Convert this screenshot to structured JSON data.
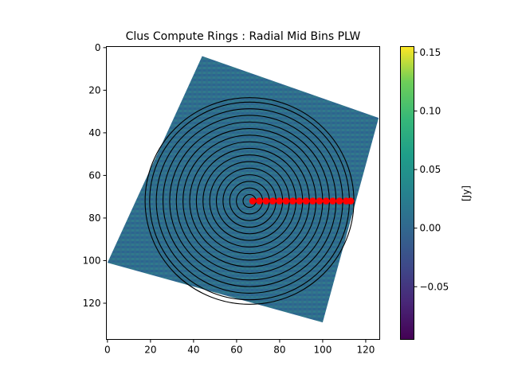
{
  "chart_data": {
    "type": "heatmap",
    "title": "Clus Compute Rings : Radial Mid Bins PLW",
    "xlim": [
      -0.5,
      126.5
    ],
    "ylim": [
      137,
      -0.5
    ],
    "x_ticks": [
      0,
      20,
      40,
      60,
      80,
      100,
      120
    ],
    "y_ticks": [
      0,
      20,
      40,
      60,
      80,
      100,
      120
    ],
    "image": {
      "shape": "rotated-square",
      "corners": [
        [
          44,
          4
        ],
        [
          126,
          33
        ],
        [
          100,
          129
        ],
        [
          0,
          101
        ]
      ],
      "base_value": 0.01,
      "colormap": "viridis"
    },
    "colorbar": {
      "label": "[Jy]",
      "range": [
        -0.095,
        0.155
      ],
      "ticks": [
        -0.05,
        0.0,
        0.05,
        0.1,
        0.15
      ],
      "tick_labels": [
        "−0.05",
        "0.00",
        "0.05",
        "0.10",
        "0.15"
      ]
    },
    "rings": {
      "center": [
        66,
        72
      ],
      "radii": [
        3,
        6.1,
        9.2,
        12.3,
        15.4,
        18.5,
        21.6,
        24.7,
        27.8,
        30.9,
        34,
        37.1,
        40.2,
        43.3,
        46.4,
        48.5
      ]
    },
    "radial_bin_points": {
      "color": "#ff0000",
      "y": 72,
      "x": [
        67.5,
        70.6,
        73.7,
        76.8,
        79.9,
        83,
        86.1,
        89.2,
        92.3,
        95.4,
        98.5,
        101.6,
        104.7,
        107.8,
        110.9,
        113
      ]
    }
  }
}
